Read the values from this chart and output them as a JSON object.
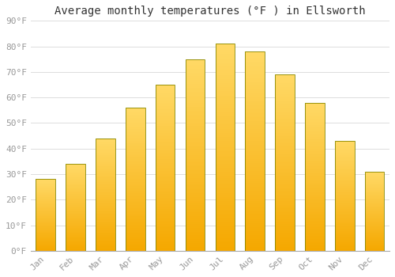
{
  "title": "Average monthly temperatures (°F ) in Ellsworth",
  "months": [
    "Jan",
    "Feb",
    "Mar",
    "Apr",
    "May",
    "Jun",
    "Jul",
    "Aug",
    "Sep",
    "Oct",
    "Nov",
    "Dec"
  ],
  "values": [
    28,
    34,
    44,
    56,
    65,
    75,
    81,
    78,
    69,
    58,
    43,
    31
  ],
  "bar_color_bottom": "#F5A800",
  "bar_color_top": "#FFD966",
  "bar_edge_color": "#888800",
  "background_color": "#FFFFFF",
  "grid_color": "#DDDDDD",
  "ylim": [
    0,
    90
  ],
  "ytick_step": 10,
  "title_fontsize": 10,
  "tick_fontsize": 8,
  "tick_label_color": "#999999",
  "title_color": "#333333",
  "bar_width": 0.65
}
